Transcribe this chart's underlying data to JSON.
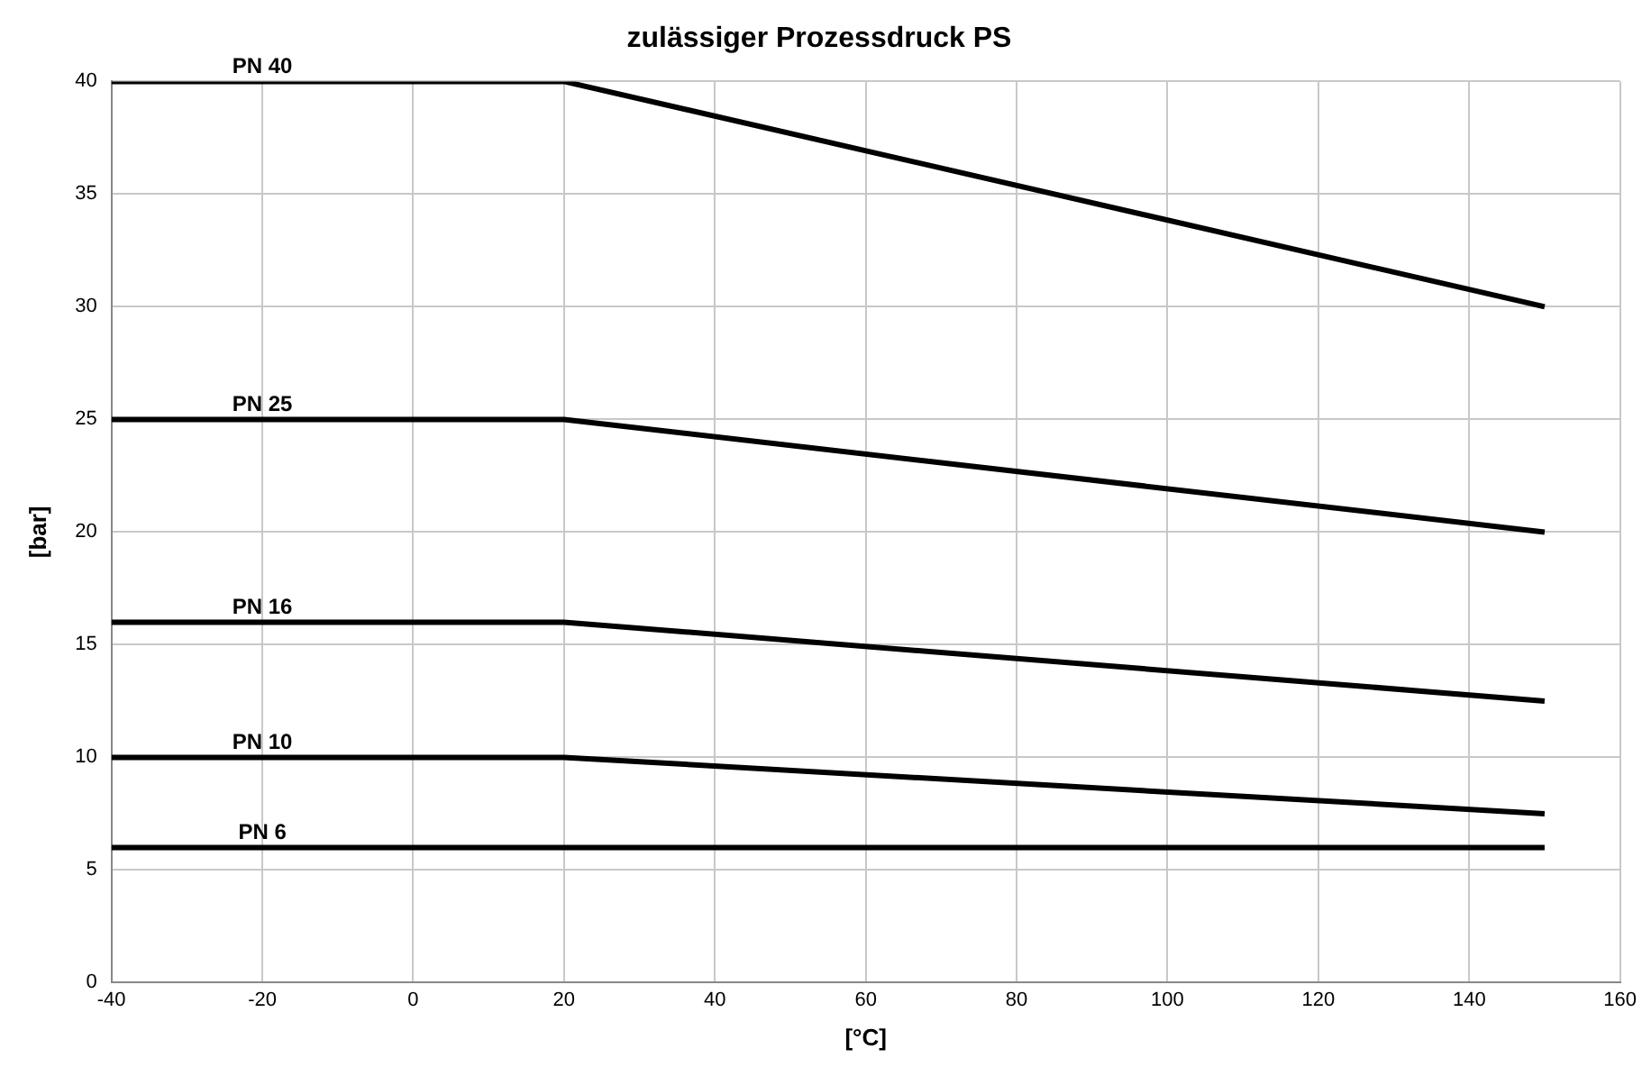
{
  "chart_data": {
    "type": "line",
    "title": "zulässiger Prozessdruck PS",
    "xlabel": "[°C]",
    "ylabel": "[bar]",
    "x": [
      -40,
      20,
      150
    ],
    "series": [
      {
        "name": "PN 40",
        "color": "#000000",
        "values": [
          40,
          40,
          30
        ]
      },
      {
        "name": "PN 25",
        "color": "#000000",
        "values": [
          25,
          25,
          20
        ]
      },
      {
        "name": "PN 16",
        "color": "#000000",
        "values": [
          16,
          16,
          12.5
        ]
      },
      {
        "name": "PN 10",
        "color": "#000000",
        "values": [
          10,
          10,
          7.5
        ]
      },
      {
        "name": "PN 6",
        "color": "#000000",
        "values": [
          6,
          6,
          6
        ]
      }
    ],
    "xlim": [
      -40,
      160
    ],
    "xticks": [
      -40,
      -20,
      0,
      20,
      40,
      60,
      80,
      100,
      120,
      140,
      160
    ],
    "ylim": [
      0,
      40
    ],
    "yticks": [
      0,
      5,
      10,
      15,
      20,
      25,
      30,
      35,
      40
    ],
    "grid": true,
    "legend": false,
    "marker": "none",
    "line_style": "solid"
  }
}
